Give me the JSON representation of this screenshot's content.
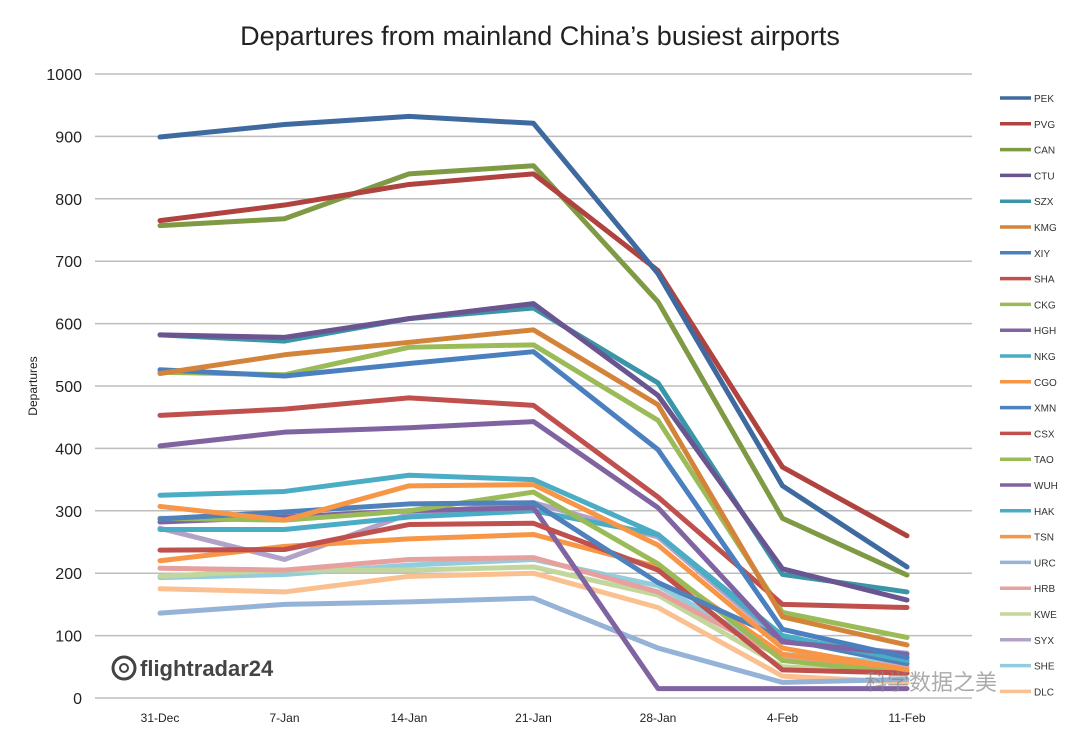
{
  "chart_data": {
    "type": "line",
    "title": "Departures from mainland China’s busiest airports",
    "xlabel": "",
    "ylabel": "Departures",
    "ylim": [
      0,
      1000
    ],
    "yticks": [
      0,
      100,
      200,
      300,
      400,
      500,
      600,
      700,
      800,
      900,
      1000
    ],
    "grid": true,
    "legend_placement": "right",
    "categories": [
      "31-Dec",
      "7-Jan",
      "14-Jan",
      "21-Jan",
      "28-Jan",
      "4-Feb",
      "11-Feb"
    ],
    "series": [
      {
        "name": "PEK",
        "color": "#3e6aa0",
        "values": [
          899,
          919,
          932,
          921,
          680,
          340,
          210
        ]
      },
      {
        "name": "PVG",
        "color": "#b0433f",
        "values": [
          765,
          790,
          823,
          840,
          685,
          370,
          260
        ]
      },
      {
        "name": "CAN",
        "color": "#7f9a45",
        "values": [
          757,
          768,
          840,
          853,
          635,
          288,
          197
        ]
      },
      {
        "name": "CTU",
        "color": "#6a5590",
        "values": [
          582,
          578,
          608,
          632,
          485,
          207,
          157
        ]
      },
      {
        "name": "SZX",
        "color": "#3b95a8",
        "values": [
          582,
          572,
          608,
          625,
          505,
          198,
          170
        ]
      },
      {
        "name": "KMG",
        "color": "#d4843a",
        "values": [
          520,
          550,
          570,
          590,
          470,
          130,
          85
        ]
      },
      {
        "name": "XIY",
        "color": "#4a80bf",
        "values": [
          526,
          516,
          536,
          555,
          398,
          110,
          65
        ]
      },
      {
        "name": "SHA",
        "color": "#c0504d",
        "values": [
          453,
          463,
          481,
          469,
          322,
          150,
          145
        ]
      },
      {
        "name": "CKG",
        "color": "#9bbb59",
        "values": [
          522,
          518,
          562,
          566,
          445,
          137,
          97
        ]
      },
      {
        "name": "HGH",
        "color": "#8064a2",
        "values": [
          404,
          426,
          433,
          443,
          305,
          90,
          70
        ]
      },
      {
        "name": "NKG",
        "color": "#4bacc6",
        "values": [
          325,
          331,
          357,
          350,
          262,
          100,
          60
        ]
      },
      {
        "name": "CGO",
        "color": "#f79646",
        "values": [
          307,
          285,
          340,
          342,
          245,
          80,
          45
        ]
      },
      {
        "name": "XMN",
        "color": "#4f81bd",
        "values": [
          287,
          298,
          311,
          313,
          185,
          95,
          55
        ]
      },
      {
        "name": "CSX",
        "color": "#c0504d",
        "values": [
          237,
          238,
          278,
          280,
          205,
          45,
          40
        ]
      },
      {
        "name": "TAO",
        "color": "#9bbb59",
        "values": [
          288,
          285,
          300,
          330,
          215,
          60,
          40
        ]
      },
      {
        "name": "WUH",
        "color": "#8064a2",
        "values": [
          282,
          290,
          300,
          305,
          15,
          15,
          15
        ]
      },
      {
        "name": "HAK",
        "color": "#4bacc6",
        "values": [
          270,
          270,
          290,
          300,
          262,
          95,
          65
        ]
      },
      {
        "name": "TSN",
        "color": "#f79646",
        "values": [
          220,
          243,
          255,
          262,
          210,
          70,
          45
        ]
      },
      {
        "name": "URC",
        "color": "#95b3d7",
        "values": [
          136,
          150,
          154,
          160,
          80,
          25,
          30
        ]
      },
      {
        "name": "HRB",
        "color": "#e6a09e",
        "values": [
          208,
          205,
          222,
          225,
          170,
          65,
          50
        ]
      },
      {
        "name": "KWE",
        "color": "#c3d69b",
        "values": [
          195,
          205,
          205,
          210,
          165,
          50,
          40
        ]
      },
      {
        "name": "SYX",
        "color": "#b3a2c7",
        "values": [
          272,
          222,
          295,
          313,
          258,
          90,
          72
        ]
      },
      {
        "name": "SHE",
        "color": "#93cddd",
        "values": [
          193,
          198,
          213,
          222,
          180,
          70,
          55
        ]
      },
      {
        "name": "DLC",
        "color": "#fac090",
        "values": [
          175,
          170,
          195,
          200,
          145,
          35,
          25
        ]
      }
    ]
  },
  "logo": {
    "text": "flightradar24"
  },
  "watermark": {
    "text": "科学数据之美"
  }
}
